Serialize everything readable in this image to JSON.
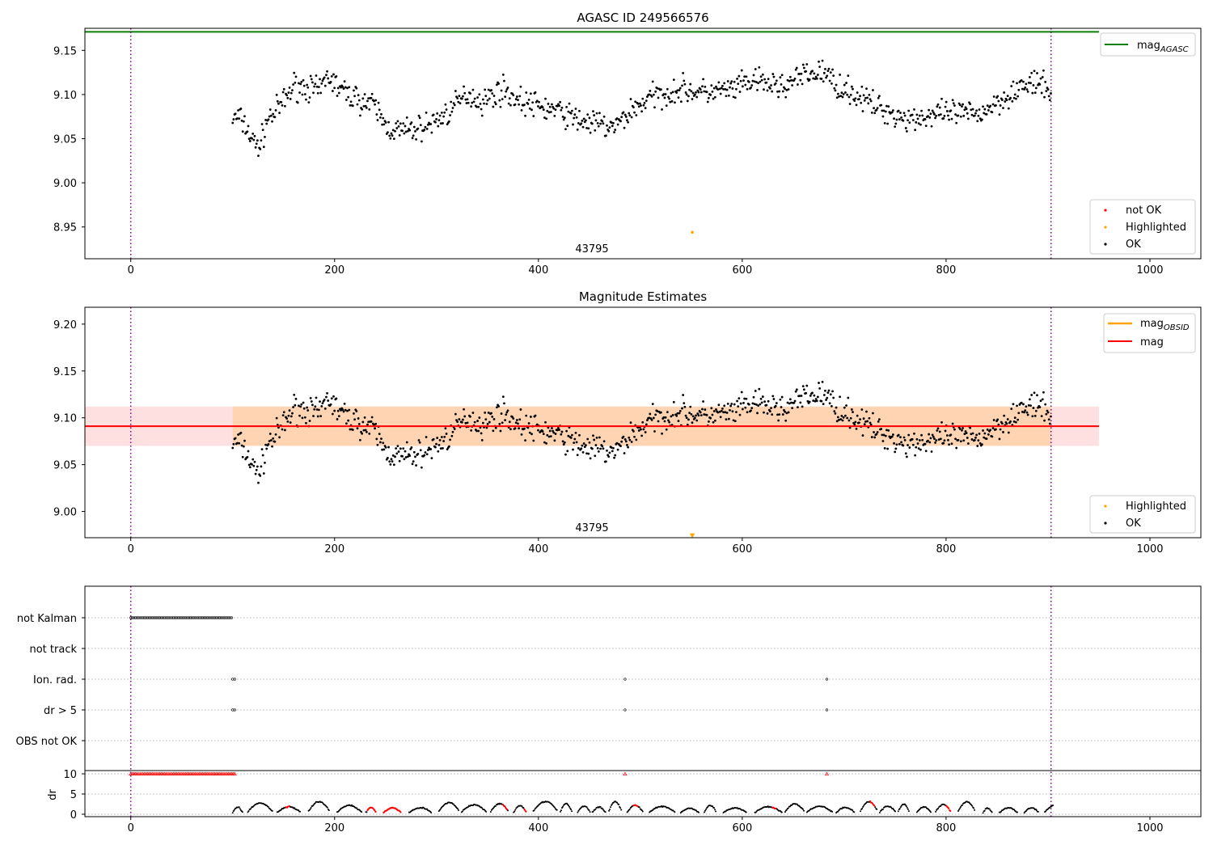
{
  "chart_data": [
    {
      "type": "scatter",
      "title": "AGASC ID 249566576",
      "xlim": [
        -45,
        1050
      ],
      "ylim": [
        8.914,
        9.175
      ],
      "xticks": [
        0,
        200,
        400,
        600,
        800,
        1000
      ],
      "yticks": [
        8.95,
        9.0,
        9.05,
        9.1,
        9.15
      ],
      "ytick_labels": [
        "8.95",
        "9.00",
        "9.05",
        "9.10",
        "9.15"
      ],
      "vlines": [
        0,
        903
      ],
      "obsid_label": "43795",
      "obsid_label_x": 452,
      "agasc_line": {
        "y": 9.171,
        "x0": -45,
        "x1": 950,
        "label_main": "mag",
        "label_sub": "AGASC",
        "color": "#008000"
      },
      "highlighted": [
        [
          551,
          8.944
        ]
      ],
      "legend_lines_position": "top-right",
      "legend_points_position": "lower-right",
      "legend_points": [
        {
          "label": "not OK",
          "color": "#ff0000"
        },
        {
          "label": "Highlighted",
          "color": "#ffa500"
        },
        {
          "label": "OK",
          "color": "#000000"
        }
      ]
    },
    {
      "type": "scatter",
      "title": "Magnitude Estimates",
      "xlim": [
        -45,
        1050
      ],
      "ylim": [
        8.972,
        9.218
      ],
      "xticks": [
        0,
        200,
        400,
        600,
        800,
        1000
      ],
      "yticks": [
        9.0,
        9.05,
        9.1,
        9.15,
        9.2
      ],
      "ytick_labels": [
        "9.00",
        "9.05",
        "9.10",
        "9.15",
        "9.20"
      ],
      "vlines": [
        0,
        903
      ],
      "obsid_label": "43795",
      "obsid_label_x": 452,
      "mag_line": {
        "y": 9.091,
        "x0": -45,
        "x1": 950,
        "label": "mag",
        "color": "#ff0000"
      },
      "mag_band": {
        "y0": 9.07,
        "y1": 9.112,
        "x0": -45,
        "x1": 950
      },
      "obsid_band": {
        "y0": 9.07,
        "y1": 9.112,
        "x0": 100,
        "x1": 903
      },
      "obsid_legend": {
        "label_main": "mag",
        "label_sub": "OBSID",
        "color": "#ffa500"
      },
      "highlighted_marker": [
        551,
        8.974
      ],
      "legend_lines_position": "top-right",
      "legend_points_position": "lower-right",
      "legend_points": [
        {
          "label": "Highlighted",
          "color": "#ffa500"
        },
        {
          "label": "OK",
          "color": "#000000"
        }
      ]
    },
    {
      "type": "scatter",
      "xlim": [
        -45,
        1050
      ],
      "xticks": [
        0,
        200,
        400,
        600,
        800,
        1000
      ],
      "flag_labels": [
        "not Kalman",
        "not track",
        "Ion. rad.",
        "dr > 5",
        "OBS not OK"
      ],
      "flag_points": {
        "not Kalman": {
          "range": [
            0,
            100
          ],
          "step": 1.5
        },
        "Ion. rad.": {
          "points": [
            100,
            102,
            485,
            683
          ]
        },
        "dr > 5": {
          "points": [
            100,
            102,
            485,
            683
          ]
        }
      },
      "dr": {
        "ylabel": "dr",
        "ylim": [
          -0.6,
          10.4
        ],
        "yticks": [
          0,
          5,
          10
        ],
        "ytick_labels": [
          "0",
          "5",
          "10"
        ],
        "clip_value": 10,
        "clipped_range": [
          0,
          102
        ],
        "clipped_points": [
          485,
          683
        ],
        "red_segments": [
          [
            152,
            156
          ],
          [
            232,
            268
          ],
          [
            297,
            302
          ],
          [
            365,
            370
          ],
          [
            386,
            392
          ],
          [
            493,
            498
          ],
          [
            630,
            634
          ],
          [
            725,
            730
          ],
          [
            800,
            805
          ]
        ]
      },
      "vlines": [
        0,
        903
      ]
    }
  ]
}
